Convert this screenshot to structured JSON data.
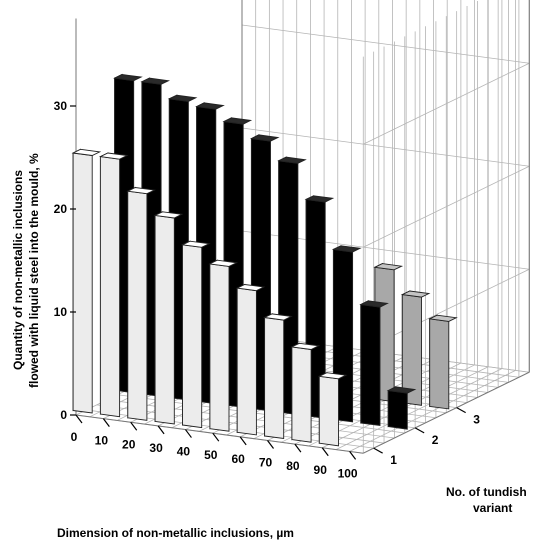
{
  "chart_data": {
    "type": "bar",
    "subtype": "3d-bar",
    "title": "",
    "xlabel": "Dimension of non-metallic inclusions, µm",
    "ylabel_line1": "Quantity of non-metallic inclusions",
    "ylabel_line2": "flowed with liquid steel into the mould, %",
    "zlabel_line1": "No. of tundish",
    "zlabel_line2": "variant",
    "x_ticks": [
      "0",
      "10",
      "20",
      "30",
      "40",
      "50",
      "60",
      "70",
      "80",
      "90",
      "100"
    ],
    "y_ticks": [
      "0",
      "10",
      "20",
      "30"
    ],
    "z_ticks": [
      "1",
      "2",
      "3"
    ],
    "ylim": [
      0,
      30
    ],
    "grid": true,
    "series": [
      {
        "name": "1",
        "color": "#ececec",
        "x": [
          0,
          10,
          20,
          30,
          40,
          50,
          60,
          70,
          80,
          90
        ],
        "values": [
          25,
          25,
          22,
          20,
          17.5,
          16,
          14,
          11.5,
          9,
          6.5
        ]
      },
      {
        "name": "2",
        "color": "#000000",
        "x": [
          0,
          10,
          20,
          30,
          40,
          50,
          60,
          70,
          80,
          90,
          100
        ],
        "values": [
          30.3,
          30.3,
          29,
          28.6,
          27.5,
          26.2,
          24.4,
          21,
          16.5,
          11.5,
          3.5
        ]
      },
      {
        "name": "3",
        "color": "#a8a8a8",
        "x": [
          80,
          90,
          100
        ],
        "values": [
          12.8,
          10.5,
          8.5
        ]
      }
    ]
  }
}
